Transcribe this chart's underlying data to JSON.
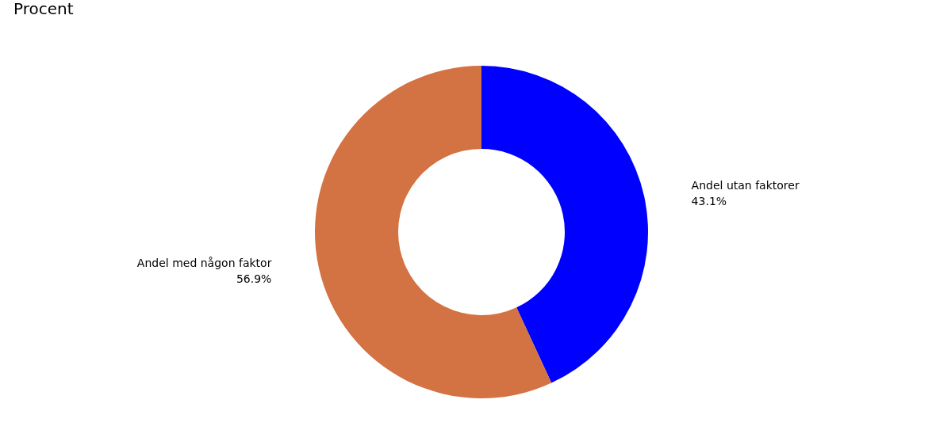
{
  "chart_data": {
    "type": "donut",
    "subtitle": "Procent",
    "categories": [
      "Andel utan faktorer",
      "Andel med någon faktor"
    ],
    "values": [
      43.1,
      56.9
    ],
    "colors": [
      "#0000ff",
      "#d37243"
    ],
    "value_labels": [
      "43.1%",
      "56.9%"
    ],
    "legend": false
  }
}
